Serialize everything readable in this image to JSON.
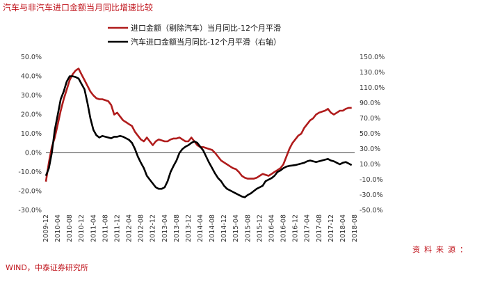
{
  "header": {
    "title": "汽车与非汽车进口金额当月同比增速比较"
  },
  "footer": {
    "source_label": "资料来源：",
    "source_text": "WIND，中泰证券研究所"
  },
  "chart_data": {
    "type": "line",
    "title": "汽车与非汽车进口金额当月同比增速比较",
    "legend_position": "top-center",
    "x_ticks": [
      "2009-12",
      "2010-04",
      "2010-08",
      "2010-12",
      "2011-04",
      "2011-08",
      "2011-12",
      "2012-04",
      "2012-08",
      "2012-12",
      "2013-04",
      "2013-08",
      "2013-12",
      "2014-04",
      "2014-08",
      "2014-12",
      "2015-04",
      "2015-08",
      "2015-12",
      "2016-04",
      "2016-08",
      "2016-12",
      "2017-04",
      "2017-08",
      "2017-12",
      "2018-04",
      "2018-08"
    ],
    "y_left": {
      "range": [
        -30,
        50
      ],
      "ticks": [
        "50.0%",
        "40.0%",
        "30.0%",
        "20.0%",
        "10.0%",
        "0.0%",
        "-10.0%",
        "-20.0%",
        "-30.0%"
      ]
    },
    "y_right": {
      "range": [
        -50,
        150
      ],
      "ticks": [
        "150.0%",
        "130.0%",
        "110.0%",
        "90.0%",
        "70.0%",
        "50.0%",
        "30.0%",
        "10.0%",
        "-10.0%",
        "-30.0%",
        "-50.0%"
      ]
    },
    "series": [
      {
        "name": "进口金额（剔除汽车）当月同比-12个月平滑",
        "color": "#b01c1c",
        "axis": "left",
        "points": [
          [
            0,
            -15
          ],
          [
            1,
            -5
          ],
          [
            2,
            3
          ],
          [
            3,
            8
          ],
          [
            4,
            15
          ],
          [
            5,
            22
          ],
          [
            6,
            28
          ],
          [
            7,
            33
          ],
          [
            8,
            38
          ],
          [
            9,
            41
          ],
          [
            10,
            43
          ],
          [
            11,
            44
          ],
          [
            12,
            41
          ],
          [
            13,
            38
          ],
          [
            14,
            35
          ],
          [
            15,
            32
          ],
          [
            16,
            30
          ],
          [
            17,
            28.5
          ],
          [
            18,
            28
          ],
          [
            19,
            28
          ],
          [
            20,
            27.5
          ],
          [
            21,
            27
          ],
          [
            22,
            25
          ],
          [
            23,
            20
          ],
          [
            24,
            21
          ],
          [
            25,
            19
          ],
          [
            26,
            17
          ],
          [
            27,
            16
          ],
          [
            28,
            15
          ],
          [
            29,
            14
          ],
          [
            30,
            11
          ],
          [
            31,
            9
          ],
          [
            32,
            7
          ],
          [
            33,
            6
          ],
          [
            34,
            8
          ],
          [
            35,
            6
          ],
          [
            36,
            4
          ],
          [
            37,
            6
          ],
          [
            38,
            7
          ],
          [
            39,
            6.5
          ],
          [
            40,
            6
          ],
          [
            41,
            6
          ],
          [
            42,
            7
          ],
          [
            43,
            7.5
          ],
          [
            44,
            7.5
          ],
          [
            45,
            8
          ],
          [
            46,
            7
          ],
          [
            47,
            6
          ],
          [
            48,
            6
          ],
          [
            49,
            8
          ],
          [
            50,
            6
          ],
          [
            51,
            4
          ],
          [
            52,
            3
          ],
          [
            53,
            3
          ],
          [
            54,
            2.5
          ],
          [
            55,
            2
          ],
          [
            56,
            1.5
          ],
          [
            57,
            0
          ],
          [
            58,
            -2
          ],
          [
            59,
            -4
          ],
          [
            60,
            -5
          ],
          [
            61,
            -6
          ],
          [
            62,
            -7
          ],
          [
            63,
            -8
          ],
          [
            64,
            -8.5
          ],
          [
            65,
            -10
          ],
          [
            66,
            -12
          ],
          [
            67,
            -13
          ],
          [
            68,
            -13.5
          ],
          [
            69,
            -13.5
          ],
          [
            70,
            -13.5
          ],
          [
            71,
            -13
          ],
          [
            72,
            -12
          ],
          [
            73,
            -11
          ],
          [
            74,
            -11.5
          ],
          [
            75,
            -12
          ],
          [
            76,
            -11
          ],
          [
            77,
            -10
          ],
          [
            78,
            -9
          ],
          [
            79,
            -8
          ],
          [
            80,
            -6
          ],
          [
            81,
            -2
          ],
          [
            82,
            2
          ],
          [
            83,
            5
          ],
          [
            84,
            7
          ],
          [
            85,
            9
          ],
          [
            86,
            10
          ],
          [
            87,
            13
          ],
          [
            88,
            15
          ],
          [
            89,
            17
          ],
          [
            90,
            18
          ],
          [
            91,
            20
          ],
          [
            92,
            21
          ],
          [
            93,
            21.5
          ],
          [
            94,
            22
          ],
          [
            95,
            23
          ],
          [
            96,
            21
          ],
          [
            97,
            20
          ],
          [
            98,
            21
          ],
          [
            99,
            22
          ],
          [
            100,
            22
          ],
          [
            101,
            23
          ],
          [
            102,
            23.5
          ],
          [
            103,
            23.5
          ]
        ]
      },
      {
        "name": "汽车进口金额当月同比-12个月平滑（右轴）",
        "color": "#000000",
        "axis": "right",
        "points": [
          [
            0,
            -5
          ],
          [
            1,
            5
          ],
          [
            2,
            25
          ],
          [
            3,
            55
          ],
          [
            4,
            75
          ],
          [
            5,
            95
          ],
          [
            6,
            105
          ],
          [
            7,
            118
          ],
          [
            8,
            125
          ],
          [
            9,
            125
          ],
          [
            10,
            124
          ],
          [
            11,
            122
          ],
          [
            12,
            115
          ],
          [
            13,
            108
          ],
          [
            14,
            90
          ],
          [
            15,
            70
          ],
          [
            16,
            55
          ],
          [
            17,
            48
          ],
          [
            18,
            45
          ],
          [
            19,
            47
          ],
          [
            20,
            46
          ],
          [
            21,
            45
          ],
          [
            22,
            44
          ],
          [
            23,
            46
          ],
          [
            24,
            46
          ],
          [
            25,
            47
          ],
          [
            26,
            46
          ],
          [
            27,
            44
          ],
          [
            28,
            42
          ],
          [
            29,
            38
          ],
          [
            30,
            30
          ],
          [
            31,
            20
          ],
          [
            32,
            12
          ],
          [
            33,
            5
          ],
          [
            34,
            -5
          ],
          [
            35,
            -10
          ],
          [
            36,
            -15
          ],
          [
            37,
            -20
          ],
          [
            38,
            -22
          ],
          [
            39,
            -22
          ],
          [
            40,
            -20
          ],
          [
            41,
            -12
          ],
          [
            42,
            0
          ],
          [
            43,
            8
          ],
          [
            44,
            15
          ],
          [
            45,
            25
          ],
          [
            46,
            30
          ],
          [
            47,
            33
          ],
          [
            48,
            35
          ],
          [
            49,
            38
          ],
          [
            50,
            40
          ],
          [
            51,
            38
          ],
          [
            52,
            33
          ],
          [
            53,
            28
          ],
          [
            54,
            20
          ],
          [
            55,
            12
          ],
          [
            56,
            5
          ],
          [
            57,
            -2
          ],
          [
            58,
            -8
          ],
          [
            59,
            -12
          ],
          [
            60,
            -18
          ],
          [
            61,
            -22
          ],
          [
            62,
            -24
          ],
          [
            63,
            -26
          ],
          [
            64,
            -28
          ],
          [
            65,
            -30
          ],
          [
            66,
            -32
          ],
          [
            67,
            -33
          ],
          [
            68,
            -30
          ],
          [
            69,
            -28
          ],
          [
            70,
            -25
          ],
          [
            71,
            -22
          ],
          [
            72,
            -20
          ],
          [
            73,
            -18
          ],
          [
            74,
            -12
          ],
          [
            75,
            -10
          ],
          [
            76,
            -8
          ],
          [
            77,
            -5
          ],
          [
            78,
            0
          ],
          [
            79,
            2
          ],
          [
            80,
            5
          ],
          [
            81,
            7
          ],
          [
            82,
            8
          ],
          [
            83,
            8.5
          ],
          [
            84,
            9
          ],
          [
            85,
            10
          ],
          [
            86,
            11
          ],
          [
            87,
            12
          ],
          [
            88,
            14
          ],
          [
            89,
            15
          ],
          [
            90,
            14
          ],
          [
            91,
            13
          ],
          [
            92,
            14
          ],
          [
            93,
            15
          ],
          [
            94,
            16
          ],
          [
            95,
            17
          ],
          [
            96,
            15
          ],
          [
            97,
            14
          ],
          [
            98,
            12
          ],
          [
            99,
            10
          ],
          [
            100,
            12
          ],
          [
            101,
            13
          ],
          [
            102,
            11
          ],
          [
            103,
            9
          ]
        ]
      }
    ]
  }
}
